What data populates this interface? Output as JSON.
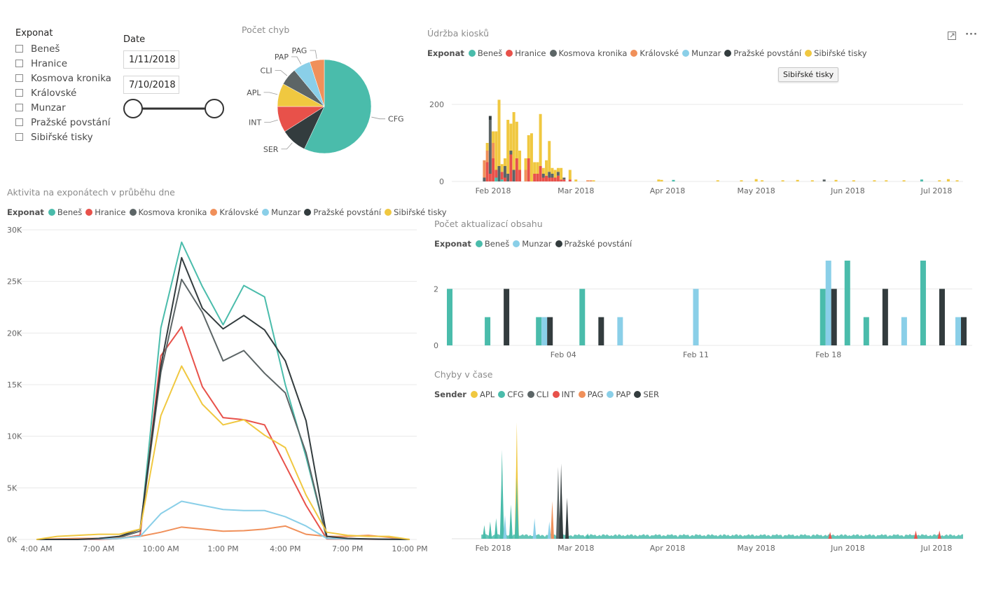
{
  "colors": {
    "Beneš": "#4abcab",
    "Hranice": "#e8514a",
    "Kosmova kronika": "#5c6566",
    "Královské": "#f0905a",
    "Munzar": "#8acfe8",
    "Pražské povstání": "#333c3e",
    "Sibiřské tisky": "#f0c840",
    "CFG": "#4abcab",
    "SER": "#333c3e",
    "INT": "#e8514a",
    "APL": "#f0c840",
    "CLI": "#5c6566",
    "PAP": "#8acfe8",
    "PAG": "#f0905a"
  },
  "exponat_slicer": {
    "title": "Exponat",
    "items": [
      "Beneš",
      "Hranice",
      "Kosmova kronika",
      "Královské",
      "Munzar",
      "Pražské povstání",
      "Sibiřské tisky"
    ]
  },
  "date_slicer": {
    "title": "Date",
    "start": "1/11/2018",
    "end": "7/10/2018"
  },
  "visual_actions": {
    "focus_icon": "focus-mode-icon",
    "more_icon": "more-options-icon",
    "more_glyph": "···"
  },
  "tooltip": {
    "text": "Sibiřské tisky"
  },
  "chart_data": [
    {
      "id": "pocet_chyb",
      "type": "pie",
      "title": "Počet chyb",
      "slices": [
        {
          "label": "CFG",
          "value": 57
        },
        {
          "label": "SER",
          "value": 9
        },
        {
          "label": "INT",
          "value": 9
        },
        {
          "label": "APL",
          "value": 8
        },
        {
          "label": "CLI",
          "value": 6
        },
        {
          "label": "PAP",
          "value": 6
        },
        {
          "label": "PAG",
          "value": 5
        }
      ]
    },
    {
      "id": "aktivita",
      "type": "line",
      "title": "Aktivita na exponátech v průběhu dne",
      "legend_title": "Exponat",
      "x": [
        "4:00 AM",
        "5:00 AM",
        "6:00 AM",
        "7:00 AM",
        "8:00 AM",
        "9:00 AM",
        "10:00 AM",
        "11:00 AM",
        "12:00 PM",
        "1:00 PM",
        "2:00 PM",
        "3:00 PM",
        "4:00 PM",
        "5:00 PM",
        "6:00 PM",
        "7:00 PM",
        "8:00 PM",
        "9:00 PM",
        "10:00 PM"
      ],
      "x_ticks": [
        "4:00 AM",
        "7:00 AM",
        "10:00 AM",
        "1:00 PM",
        "4:00 PM",
        "7:00 PM",
        "10:00 PM"
      ],
      "y_ticks": [
        "0K",
        "5K",
        "10K",
        "15K",
        "20K",
        "25K",
        "30K"
      ],
      "ylim": [
        0,
        30000
      ],
      "series": [
        {
          "name": "Beneš",
          "values": [
            0,
            0,
            0,
            0,
            100,
            400,
            20500,
            28800,
            24500,
            20800,
            24600,
            23500,
            15000,
            8000,
            100,
            50,
            30,
            20,
            0
          ]
        },
        {
          "name": "Hranice",
          "values": [
            0,
            0,
            0,
            0,
            100,
            400,
            17800,
            20600,
            14800,
            11800,
            11600,
            11100,
            7200,
            3300,
            50,
            30,
            20,
            10,
            0
          ]
        },
        {
          "name": "Kosmova kronika",
          "values": [
            0,
            0,
            0,
            100,
            200,
            800,
            16200,
            25200,
            22000,
            17300,
            18300,
            16100,
            14200,
            8400,
            100,
            50,
            30,
            20,
            0
          ]
        },
        {
          "name": "Královské",
          "values": [
            0,
            50,
            100,
            100,
            150,
            300,
            700,
            1200,
            1000,
            800,
            850,
            1000,
            1300,
            500,
            300,
            300,
            400,
            200,
            0
          ]
        },
        {
          "name": "Munzar",
          "values": [
            0,
            0,
            0,
            50,
            100,
            300,
            2500,
            3700,
            3300,
            2900,
            2800,
            2800,
            2200,
            1300,
            100,
            50,
            30,
            20,
            0
          ]
        },
        {
          "name": "Pražské povstání",
          "values": [
            0,
            0,
            0,
            100,
            300,
            1000,
            16800,
            27300,
            22400,
            20400,
            21700,
            20300,
            17300,
            11500,
            300,
            100,
            50,
            20,
            0
          ]
        },
        {
          "name": "Sibiřské tisky",
          "values": [
            0,
            300,
            400,
            500,
            500,
            1000,
            12000,
            16800,
            13100,
            11100,
            11600,
            10100,
            8900,
            4300,
            700,
            400,
            300,
            300,
            0
          ]
        }
      ]
    },
    {
      "id": "udrzba",
      "type": "bar",
      "stacked": true,
      "title": "Údržba kiosků",
      "legend_title": "Exponat",
      "x_ticks": [
        "Feb 2018",
        "Mar 2018",
        "Apr 2018",
        "May 2018",
        "Jun 2018",
        "Jul 2018"
      ],
      "y_ticks": [
        "0",
        "200"
      ],
      "ylim": [
        0,
        220
      ],
      "series_order": [
        "Beneš",
        "Hranice",
        "Kosmova kronika",
        "Královské",
        "Munzar",
        "Pražské povstání",
        "Sibiřské tisky"
      ],
      "bars": [
        {
          "date": "2018-01-29",
          "values": {
            "Královské": 45,
            "Kosmova kronika": 10
          }
        },
        {
          "date": "2018-01-30",
          "values": {
            "Hranice": 50,
            "Královské": 30,
            "Sibiřské tisky": 20
          }
        },
        {
          "date": "2018-01-31",
          "values": {
            "Hranice": 20,
            "Kosmova kronika": 140,
            "Pražské povstání": 10
          }
        },
        {
          "date": "2018-02-01",
          "values": {
            "Hranice": 60,
            "Královské": 40,
            "Sibiřské tisky": 30
          }
        },
        {
          "date": "2018-02-02",
          "values": {
            "Beneš": 10,
            "Hranice": 20,
            "Sibiřské tisky": 100
          }
        },
        {
          "date": "2018-02-03",
          "values": {
            "Kosmova kronika": 40,
            "Sibiřské tisky": 172
          }
        },
        {
          "date": "2018-02-04",
          "values": {
            "Beneš": 5,
            "Hranice": 20,
            "Sibiřské tisky": 20
          }
        },
        {
          "date": "2018-02-05",
          "values": {
            "Hranice": 10,
            "Kosmova kronika": 30,
            "Sibiřské tisky": 20
          }
        },
        {
          "date": "2018-02-06",
          "values": {
            "Kosmova kronika": 20,
            "Sibiřské tisky": 140
          }
        },
        {
          "date": "2018-02-07",
          "values": {
            "Hranice": 70,
            "Kosmova kronika": 10,
            "Sibiřské tisky": 70
          }
        },
        {
          "date": "2018-02-08",
          "values": {
            "Kosmova kronika": 30,
            "Sibiřské tisky": 150
          }
        },
        {
          "date": "2018-02-09",
          "values": {
            "Hranice": 60,
            "Sibiřské tisky": 95
          }
        },
        {
          "date": "2018-02-10",
          "values": {
            "Hranice": 30,
            "Sibiřské tisky": 50
          }
        },
        {
          "date": "2018-02-12",
          "values": {
            "Královské": 30,
            "Sibiřské tisky": 30
          }
        },
        {
          "date": "2018-02-13",
          "values": {
            "Hranice": 60,
            "Sibiřské tisky": 60
          }
        },
        {
          "date": "2018-02-14",
          "values": {
            "Sibiřské tisky": 125
          }
        },
        {
          "date": "2018-02-15",
          "values": {
            "Hranice": 20,
            "Sibiřské tisky": 30
          }
        },
        {
          "date": "2018-02-16",
          "values": {
            "Hranice": 20,
            "Sibiřské tisky": 30
          }
        },
        {
          "date": "2018-02-17",
          "values": {
            "Hranice": 40,
            "Sibiřské tisky": 135
          }
        },
        {
          "date": "2018-02-18",
          "values": {
            "Hranice": 10,
            "Kosmova kronika": 10,
            "Sibiřské tisky": 15
          }
        },
        {
          "date": "2018-02-19",
          "values": {
            "Hranice": 15,
            "Sibiřské tisky": 40
          }
        },
        {
          "date": "2018-02-20",
          "values": {
            "Hranice": 10,
            "Kosmova kronika": 15,
            "Sibiřské tisky": 80
          }
        },
        {
          "date": "2018-02-21",
          "values": {
            "Hranice": 10,
            "Kosmova kronika": 10,
            "Sibiřské tisky": 15
          }
        },
        {
          "date": "2018-02-22",
          "values": {
            "Hranice": 10,
            "Sibiřské tisky": 20
          }
        },
        {
          "date": "2018-02-23",
          "values": {
            "Hranice": 15,
            "Kosmova kronika": 10,
            "Sibiřské tisky": 10
          }
        },
        {
          "date": "2018-02-24",
          "values": {
            "Hranice": 5,
            "Sibiřské tisky": 30
          }
        },
        {
          "date": "2018-02-25",
          "values": {
            "Hranice": 5,
            "Kosmova kronika": 5
          }
        },
        {
          "date": "2018-02-27",
          "values": {
            "Hranice": 5,
            "Sibiřské tisky": 25
          }
        },
        {
          "date": "2018-03-01",
          "values": {
            "Sibiřské tisky": 5
          }
        },
        {
          "date": "2018-03-05",
          "values": {
            "Královské": 3
          }
        },
        {
          "date": "2018-03-06",
          "values": {
            "Královské": 3
          }
        },
        {
          "date": "2018-03-07",
          "values": {
            "Sibiřské tisky": 3
          }
        },
        {
          "date": "2018-03-29",
          "values": {
            "Sibiřské tisky": 5
          }
        },
        {
          "date": "2018-03-30",
          "values": {
            "Sibiřské tisky": 4
          }
        },
        {
          "date": "2018-04-03",
          "values": {
            "Beneš": 4
          }
        },
        {
          "date": "2018-04-18",
          "values": {
            "Sibiřské tisky": 3
          }
        },
        {
          "date": "2018-04-26",
          "values": {
            "Sibiřské tisky": 3
          }
        },
        {
          "date": "2018-05-01",
          "values": {
            "Sibiřské tisky": 6
          }
        },
        {
          "date": "2018-05-03",
          "values": {
            "Sibiřské tisky": 3
          }
        },
        {
          "date": "2018-05-10",
          "values": {
            "Sibiřské tisky": 3
          }
        },
        {
          "date": "2018-05-15",
          "values": {
            "Sibiřské tisky": 4
          }
        },
        {
          "date": "2018-05-20",
          "values": {
            "Sibiřské tisky": 3
          }
        },
        {
          "date": "2018-05-24",
          "values": {
            "Kosmova kronika": 5
          }
        },
        {
          "date": "2018-05-28",
          "values": {
            "Sibiřské tisky": 4
          }
        },
        {
          "date": "2018-06-03",
          "values": {
            "Sibiřské tisky": 3
          }
        },
        {
          "date": "2018-06-10",
          "values": {
            "Sibiřské tisky": 3
          }
        },
        {
          "date": "2018-06-14",
          "values": {
            "Sibiřské tisky": 3
          }
        },
        {
          "date": "2018-06-20",
          "values": {
            "Sibiřské tisky": 3
          }
        },
        {
          "date": "2018-06-26",
          "values": {
            "Beneš": 5
          }
        },
        {
          "date": "2018-07-02",
          "values": {
            "Sibiřské tisky": 3
          }
        },
        {
          "date": "2018-07-05",
          "values": {
            "Sibiřské tisky": 6
          }
        },
        {
          "date": "2018-07-08",
          "values": {
            "Sibiřské tisky": 3
          }
        }
      ]
    },
    {
      "id": "aktualizace",
      "type": "bar",
      "grouped": true,
      "title": "Počet aktualizací obsahu",
      "legend_title": "Exponat",
      "x_ticks": [
        {
          "label": "Feb 04",
          "date": "2018-02-04"
        },
        {
          "label": "Feb 11",
          "date": "2018-02-11"
        },
        {
          "label": "Feb 18",
          "date": "2018-02-18"
        }
      ],
      "y_ticks": [
        "0",
        "2"
      ],
      "ylim": [
        0,
        3
      ],
      "series_order": [
        "Beneš",
        "Munzar",
        "Pražské povstání"
      ],
      "bars": [
        {
          "date": "2018-01-29",
          "values": {
            "Beneš": 2
          }
        },
        {
          "date": "2018-01-31",
          "values": {
            "Beneš": 1
          }
        },
        {
          "date": "2018-02-01",
          "values": {
            "Pražské povstání": 2
          }
        },
        {
          "date": "2018-02-03",
          "values": {
            "Beneš": 1,
            "Munzar": 1,
            "Pražské povstání": 1
          }
        },
        {
          "date": "2018-02-05",
          "values": {
            "Beneš": 2
          }
        },
        {
          "date": "2018-02-06",
          "values": {
            "Pražské povstání": 1
          }
        },
        {
          "date": "2018-02-07",
          "values": {
            "Munzar": 1
          }
        },
        {
          "date": "2018-02-11",
          "values": {
            "Munzar": 2
          }
        },
        {
          "date": "2018-02-18",
          "values": {
            "Beneš": 2,
            "Munzar": 3,
            "Pražské povstání": 2
          }
        },
        {
          "date": "2018-02-19",
          "values": {
            "Beneš": 3
          }
        },
        {
          "date": "2018-02-20",
          "values": {
            "Beneš": 1
          }
        },
        {
          "date": "2018-02-21",
          "values": {
            "Pražské povstání": 2
          }
        },
        {
          "date": "2018-02-22",
          "values": {
            "Munzar": 1
          }
        },
        {
          "date": "2018-02-23",
          "values": {
            "Beneš": 3
          }
        },
        {
          "date": "2018-02-24",
          "values": {
            "Pražské povstání": 2
          }
        },
        {
          "date": "2018-02-25",
          "values": {
            "Munzar": 1,
            "Pražské povstání": 1
          }
        }
      ]
    },
    {
      "id": "chyby_v_case",
      "type": "area",
      "title": "Chyby v čase",
      "legend_title": "Sender",
      "x_ticks": [
        "Feb 2018",
        "Mar 2018",
        "Apr 2018",
        "May 2018",
        "Jun 2018",
        "Jul 2018"
      ],
      "series_order": [
        "APL",
        "CFG",
        "CLI",
        "INT",
        "PAG",
        "PAP",
        "SER"
      ],
      "ylim": [
        0,
        180
      ],
      "spikes": [
        {
          "sender": "CFG",
          "date": "2018-01-29",
          "value": 20
        },
        {
          "sender": "CFG",
          "date": "2018-01-31",
          "value": 25
        },
        {
          "sender": "CFG",
          "date": "2018-02-02",
          "value": 30
        },
        {
          "sender": "CFG",
          "date": "2018-02-04",
          "value": 130
        },
        {
          "sender": "CFG",
          "date": "2018-02-05",
          "value": 20
        },
        {
          "sender": "PAP",
          "date": "2018-02-05",
          "value": 35
        },
        {
          "sender": "CFG",
          "date": "2018-02-07",
          "value": 50
        },
        {
          "sender": "APL",
          "date": "2018-02-09",
          "value": 170
        },
        {
          "sender": "CFG",
          "date": "2018-02-09",
          "value": 90
        },
        {
          "sender": "PAP",
          "date": "2018-02-15",
          "value": 30
        },
        {
          "sender": "PAG",
          "date": "2018-02-21",
          "value": 55
        },
        {
          "sender": "PAP",
          "date": "2018-02-20",
          "value": 25
        },
        {
          "sender": "CLI",
          "date": "2018-02-23",
          "value": 105
        },
        {
          "sender": "SER",
          "date": "2018-02-24",
          "value": 110
        },
        {
          "sender": "SER",
          "date": "2018-02-26",
          "value": 60
        },
        {
          "sender": "CFG",
          "date": "2018-03-05",
          "value": 8
        },
        {
          "sender": "INT",
          "date": "2018-05-26",
          "value": 10
        },
        {
          "sender": "INT",
          "date": "2018-06-24",
          "value": 12
        },
        {
          "sender": "INT",
          "date": "2018-07-02",
          "value": 12
        }
      ]
    }
  ]
}
